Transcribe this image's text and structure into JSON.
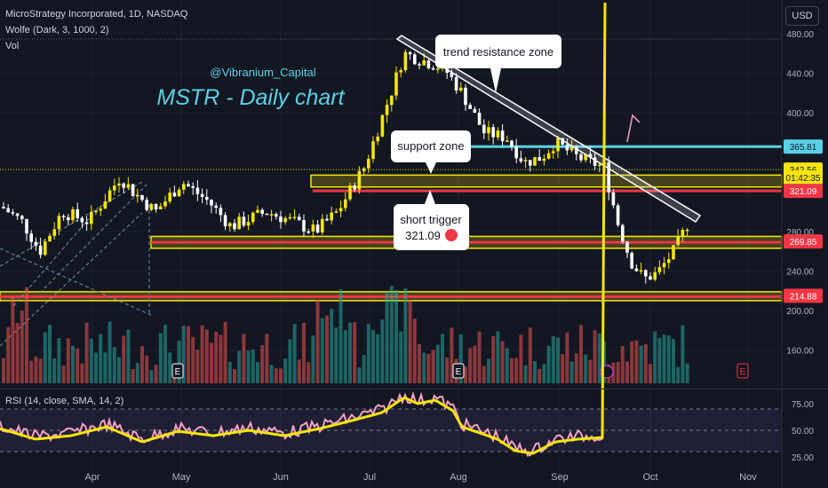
{
  "header": {
    "title": "MicroStrategy Incorporated, 1D, NASDAQ",
    "indicator1": "Wolfe (Dark, 3, 1000, 2)",
    "indicator2": "Vol",
    "currency": "USD"
  },
  "rsi_header": "RSI (14, close, SMA, 14, 2)",
  "colors": {
    "background": "#131722",
    "up": "#f5e50a",
    "down": "#ffffff",
    "vol_up": "#26a69a",
    "vol_down": "#ef5350",
    "rsi": "#f7a1c4",
    "rsi_ma": "#f5e50a",
    "support_line": "#5ad1e6",
    "red_line": "#f23645",
    "zone_fill": "#f5e50a"
  },
  "chart_data": {
    "type": "candlestick",
    "title": "MSTR - Daily chart",
    "watermark": "@Vibranium_Capital",
    "y_ticks": [
      "480.00",
      "440.00",
      "400.00",
      "280.00",
      "240.00",
      "200.00",
      "160.00"
    ],
    "x_ticks": [
      "Apr",
      "May",
      "Jun",
      "Jul",
      "Aug",
      "Sep",
      "Oct",
      "Nov"
    ],
    "price_labels": [
      {
        "text": "365.81",
        "value": 365.81,
        "style": "support"
      },
      {
        "text": "342.56",
        "value": 342.56,
        "style": "last"
      },
      {
        "text": "01:42:35",
        "value": 334.5,
        "style": "last"
      },
      {
        "text": "321.09",
        "value": 321.09,
        "style": "trigger"
      },
      {
        "text": "269.85",
        "value": 269.85,
        "style": "trigger"
      },
      {
        "text": "214.88",
        "value": 214.88,
        "style": "trigger"
      }
    ],
    "levels": {
      "support_line": 365.81,
      "last_price": 342.56,
      "short_trigger": 321.09,
      "zone1": [
        325,
        337
      ],
      "zone2": [
        263,
        275
      ],
      "zone3": [
        210,
        219
      ]
    },
    "annotations": [
      {
        "text": "trend resistance zone"
      },
      {
        "text": "support zone"
      },
      {
        "text": "short trigger"
      },
      {
        "text": "321.09"
      }
    ],
    "ohlc_daily": [],
    "rsi": {
      "ticks": [
        "75.00",
        "50.00",
        "25.00"
      ],
      "upper": 70,
      "lower": 30
    }
  }
}
